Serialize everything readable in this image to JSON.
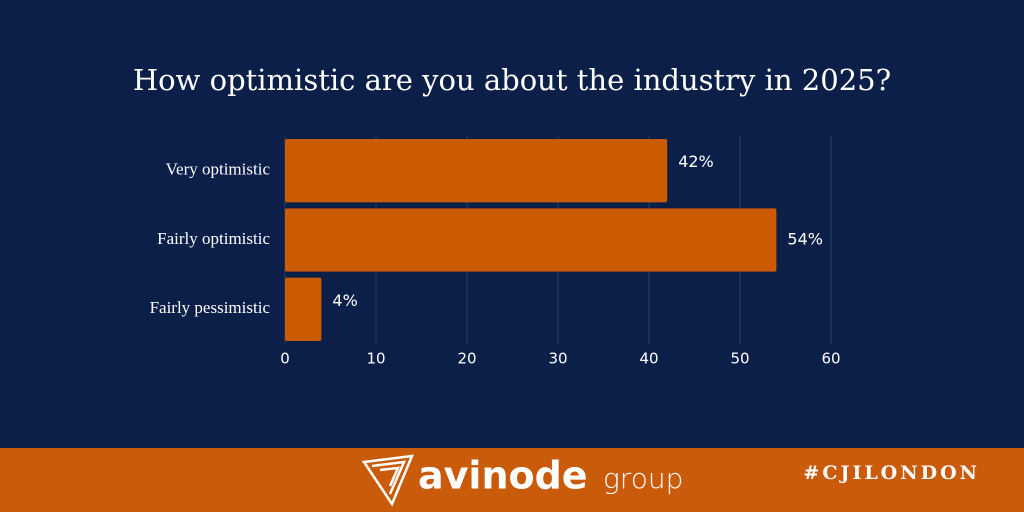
{
  "chart_data": {
    "type": "hbar",
    "title": "How optimistic are you about the industry in 2025?",
    "categories": [
      "Very optimistic",
      "Fairly optimistic",
      "Fairly pessimistic"
    ],
    "values": [
      42,
      54,
      4
    ],
    "value_labels": [
      "42%",
      "54%",
      "4%"
    ],
    "color": "#cc5a00",
    "xlim": [
      0,
      60
    ],
    "xticks": [
      0,
      10,
      20,
      30,
      40,
      50,
      60
    ],
    "grid": true
  },
  "footer": {
    "brand": "avinode",
    "brand_suffix": "group",
    "hashtag": "#CJILONDON"
  }
}
